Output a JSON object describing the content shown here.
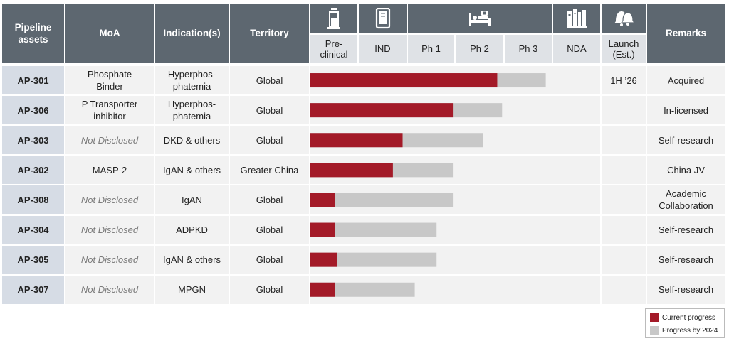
{
  "header": {
    "asset": "Pipeline assets",
    "moa": "MoA",
    "indication": "Indication(s)",
    "territory": "Territory",
    "remarks": "Remarks",
    "stages": [
      "Pre-clinical",
      "IND",
      "Ph 1",
      "Ph 2",
      "Ph 3",
      "NDA",
      "Launch (Est.)"
    ],
    "icons": [
      "flask-icon",
      "document-icon",
      "hospital-bed-icon",
      "books-icon",
      "bell-icon"
    ]
  },
  "colors": {
    "current": "#a31a28",
    "target": "#c8c8c8",
    "header": "#5d6770"
  },
  "chart_data": {
    "type": "bar",
    "orientation": "horizontal",
    "stage_axis": [
      "Pre-clinical",
      "IND",
      "Ph 1",
      "Ph 2",
      "Ph 3",
      "NDA"
    ],
    "series": [
      {
        "name": "Current progress",
        "values": [
          3.85,
          2.95,
          1.9,
          1.7,
          0.5,
          0.5,
          0.55,
          0.5
        ]
      },
      {
        "name": "Progress by 2024",
        "values": [
          4.85,
          3.95,
          3.55,
          2.95,
          2.95,
          2.6,
          2.6,
          2.15
        ]
      }
    ],
    "rows": [
      {
        "asset": "AP-301",
        "moa": "Phosphate Binder",
        "moa_disclosed": true,
        "indication": "Hyperphos-phatemia",
        "territory": "Global",
        "launch": "1H ’26",
        "remarks": "Acquired"
      },
      {
        "asset": "AP-306",
        "moa": "P Transporter inhibitor",
        "moa_disclosed": true,
        "indication": "Hyperphos-phatemia",
        "territory": "Global",
        "launch": "",
        "remarks": "In-licensed"
      },
      {
        "asset": "AP-303",
        "moa": "Not Disclosed",
        "moa_disclosed": false,
        "indication": "DKD & others",
        "territory": "Global",
        "launch": "",
        "remarks": "Self-research"
      },
      {
        "asset": "AP-302",
        "moa": "MASP-2",
        "moa_disclosed": true,
        "indication": "IgAN & others",
        "territory": "Greater China",
        "launch": "",
        "remarks": "China JV"
      },
      {
        "asset": "AP-308",
        "moa": "Not Disclosed",
        "moa_disclosed": false,
        "indication": "IgAN",
        "territory": "Global",
        "launch": "",
        "remarks": "Academic Collaboration"
      },
      {
        "asset": "AP-304",
        "moa": "Not Disclosed",
        "moa_disclosed": false,
        "indication": "ADPKD",
        "territory": "Global",
        "launch": "",
        "remarks": "Self-research"
      },
      {
        "asset": "AP-305",
        "moa": "Not Disclosed",
        "moa_disclosed": false,
        "indication": "IgAN & others",
        "territory": "Global",
        "launch": "",
        "remarks": "Self-research"
      },
      {
        "asset": "AP-307",
        "moa": "Not Disclosed",
        "moa_disclosed": false,
        "indication": "MPGN",
        "territory": "Global",
        "launch": "",
        "remarks": "Self-research"
      }
    ],
    "legend": [
      "Current progress",
      "Progress by 2024"
    ],
    "legend_position": "bottom-right"
  }
}
